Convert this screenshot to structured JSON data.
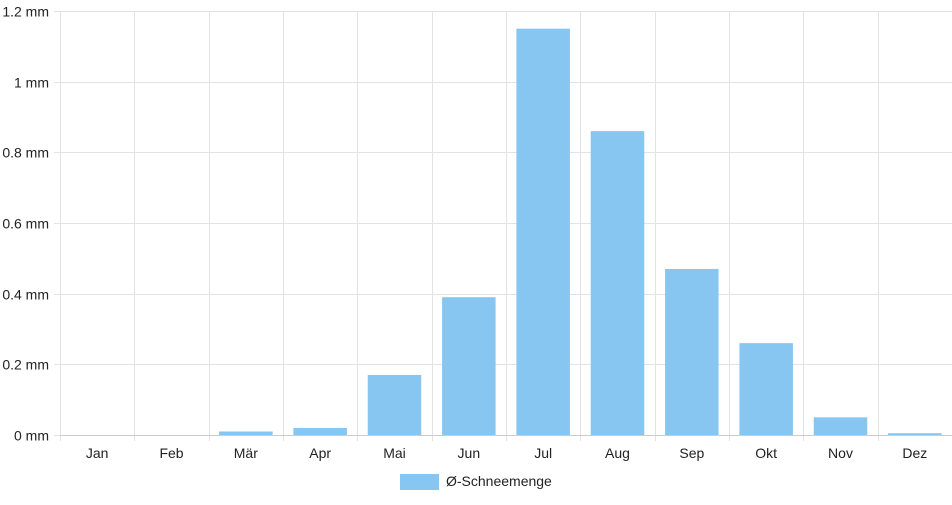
{
  "chart_data": {
    "type": "bar",
    "categories": [
      "Jan",
      "Feb",
      "Mär",
      "Apr",
      "Mai",
      "Jun",
      "Jul",
      "Aug",
      "Sep",
      "Okt",
      "Nov",
      "Dez"
    ],
    "series": [
      {
        "name": "Ø-Schneemenge",
        "values": [
          0,
          0,
          0.01,
          0.02,
          0.17,
          0.39,
          1.15,
          0.86,
          0.47,
          0.26,
          0.05,
          0.005
        ],
        "color": "#87c6f0"
      }
    ],
    "ylim": [
      0,
      1.2
    ],
    "yticks": [
      0,
      0.2,
      0.4,
      0.6,
      0.8,
      1,
      1.2
    ],
    "y_unit": "mm",
    "grid": true,
    "legend_position": "bottom",
    "grid_color": "#e3e3e3",
    "axis_color": "#cccccc"
  }
}
